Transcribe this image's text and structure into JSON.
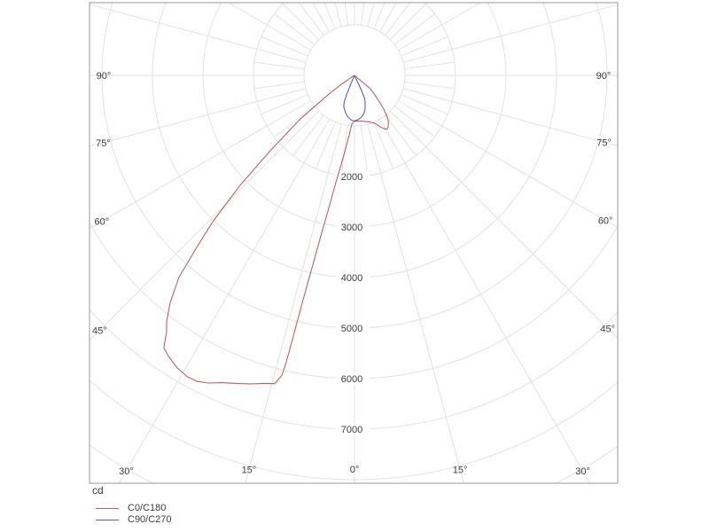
{
  "chart_data": {
    "type": "polar",
    "subtype": "photometric-intensity-distribution",
    "unit": "cd",
    "angle_axis": {
      "zero_direction": "down",
      "labeled_angles_deg": [
        0,
        15,
        30,
        45,
        60,
        75,
        90
      ],
      "label_suffix": "°",
      "major_grid_step_deg": 15,
      "minor_grid_step_deg": 7.5,
      "note": "labels mirrored on left and right sides"
    },
    "radial_axis": {
      "unit": "cd",
      "circle_step": 1000,
      "max_circle": 9000,
      "labeled_values": [
        2000,
        3000,
        4000,
        5000,
        6000,
        7000
      ]
    },
    "series": [
      {
        "name": "C0/C180",
        "color": "#c1605f",
        "points_deg_cd": [
          [
            -52,
            0
          ],
          [
            -50,
            400
          ],
          [
            -47,
            520
          ],
          [
            -44,
            680
          ],
          [
            -41,
            880
          ],
          [
            -38,
            1070
          ],
          [
            -36,
            1140
          ],
          [
            -34,
            1200
          ],
          [
            -32,
            1240
          ],
          [
            -30,
            1230
          ],
          [
            -28,
            1180
          ],
          [
            -26,
            1120
          ],
          [
            -23,
            1030
          ],
          [
            -20,
            990
          ],
          [
            -16,
            955
          ],
          [
            -12,
            930
          ],
          [
            -8,
            915
          ],
          [
            -4,
            905
          ],
          [
            0,
            910
          ],
          [
            3,
            960
          ],
          [
            5,
            1180
          ],
          [
            7,
            1480
          ],
          [
            9,
            1900
          ],
          [
            10,
            2200
          ],
          [
            11,
            2700
          ],
          [
            11.8,
            3200
          ],
          [
            12.3,
            3700
          ],
          [
            12.7,
            4200
          ],
          [
            13,
            4750
          ],
          [
            13.2,
            5300
          ],
          [
            13.4,
            5850
          ],
          [
            13.6,
            6100
          ],
          [
            14.5,
            6300
          ],
          [
            16.3,
            6350
          ],
          [
            18.6,
            6440
          ],
          [
            20.5,
            6510
          ],
          [
            23.3,
            6620
          ],
          [
            25.4,
            6740
          ],
          [
            27.2,
            6810
          ],
          [
            29,
            6820
          ],
          [
            31.2,
            6770
          ],
          [
            33.5,
            6670
          ],
          [
            35,
            6580
          ],
          [
            36.2,
            6300
          ],
          [
            37.4,
            6120
          ],
          [
            39,
            5800
          ],
          [
            41,
            5300
          ],
          [
            42.4,
            4680
          ],
          [
            44.1,
            4030
          ],
          [
            46.1,
            3160
          ],
          [
            48.1,
            2280
          ],
          [
            51.1,
            1400
          ],
          [
            53.7,
            650
          ],
          [
            55.5,
            350
          ],
          [
            57,
            120
          ],
          [
            58,
            0
          ]
        ]
      },
      {
        "name": "C90/C270",
        "color": "#5e5eb7",
        "points_deg_cd": [
          [
            -26,
            0
          ],
          [
            -25,
            330
          ],
          [
            -24,
            440
          ],
          [
            -23.5,
            490
          ],
          [
            -22,
            560
          ],
          [
            -20,
            620
          ],
          [
            -18,
            680
          ],
          [
            -16,
            730
          ],
          [
            -14,
            770
          ],
          [
            -12,
            805
          ],
          [
            -10,
            830
          ],
          [
            -8,
            850
          ],
          [
            -6,
            868
          ],
          [
            -4,
            882
          ],
          [
            -2,
            892
          ],
          [
            0,
            900
          ],
          [
            2,
            898
          ],
          [
            4,
            885
          ],
          [
            6,
            865
          ],
          [
            8,
            845
          ],
          [
            10,
            815
          ],
          [
            11.5,
            790
          ],
          [
            13,
            765
          ],
          [
            15,
            730
          ],
          [
            17,
            690
          ],
          [
            19,
            650
          ],
          [
            20.5,
            590
          ],
          [
            21.5,
            530
          ],
          [
            22,
            430
          ],
          [
            22.5,
            320
          ],
          [
            23,
            200
          ],
          [
            24,
            0
          ]
        ]
      }
    ],
    "legend": {
      "unit_label": "cd",
      "items": [
        "C0/C180",
        "C90/C270"
      ]
    }
  },
  "colors": {
    "grid": "#e2e2e2",
    "border": "#999999",
    "text": "#3c3c3c",
    "background": "#ffffff"
  }
}
